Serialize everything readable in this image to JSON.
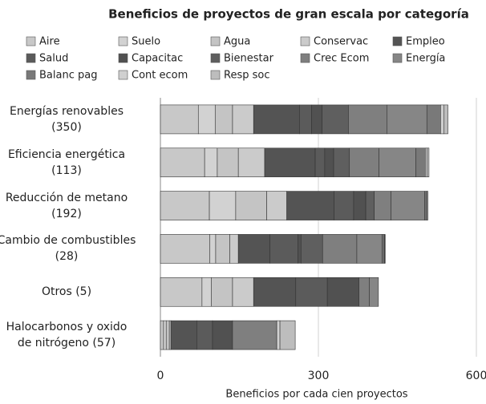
{
  "chart_data": {
    "type": "stacked_barh",
    "title": "Beneficios de proyectos de gran escala por categoría",
    "x_label": "Beneficios por cada cien proyectos",
    "categories": [
      "Energías renovables\n(350)",
      "Eficiencia energética\n(113)",
      "Reducción de metano\n(192)",
      "Cambio de combustibles\n(28)",
      "Otros (5)",
      "Halocarbonos y oxido\nde nitrógeno (57)"
    ],
    "series": [
      {
        "name": "Aire",
        "color": "#c8c8c8",
        "values": [
          72,
          84,
          93,
          94,
          79,
          6
        ]
      },
      {
        "name": "Suelo",
        "color": "#d2d2d2",
        "values": [
          32,
          24,
          50,
          11,
          18,
          5
        ]
      },
      {
        "name": "Agua",
        "color": "#c4c4c4",
        "values": [
          33,
          40,
          59,
          27,
          40,
          6
        ]
      },
      {
        "name": "Conservac",
        "color": "#cbcbcb",
        "values": [
          40,
          50,
          38,
          16,
          40,
          3
        ]
      },
      {
        "name": "Empleo",
        "color": "#545454",
        "values": [
          87,
          96,
          90,
          60,
          80,
          49
        ]
      },
      {
        "name": "Salud",
        "color": "#5b5b5b",
        "values": [
          23,
          18,
          37,
          53,
          60,
          30
        ]
      },
      {
        "name": "Capacitac",
        "color": "#515151",
        "values": [
          20,
          17,
          23,
          6,
          60,
          38
        ]
      },
      {
        "name": "Bienestar",
        "color": "#5f5f5f",
        "values": [
          50,
          30,
          16,
          41,
          0,
          0
        ]
      },
      {
        "name": "Crec Ecom",
        "color": "#7f7f7f",
        "values": [
          73,
          56,
          32,
          65,
          20,
          84
        ]
      },
      {
        "name": "Energía",
        "color": "#868686",
        "values": [
          76,
          70,
          64,
          48,
          17,
          0
        ]
      },
      {
        "name": "Balanc pag",
        "color": "#797979",
        "values": [
          26,
          18,
          3,
          4,
          0,
          0
        ]
      },
      {
        "name": "Cont ecom",
        "color": "#d0d0d0",
        "values": [
          6,
          3,
          2,
          1,
          0,
          6
        ]
      },
      {
        "name": "Resp soc",
        "color": "#bdbdbd",
        "values": [
          8,
          4,
          1,
          1,
          0,
          29
        ]
      }
    ],
    "xlim": [
      0,
      600
    ],
    "xticks": [
      0,
      300,
      600
    ],
    "grid": true
  }
}
